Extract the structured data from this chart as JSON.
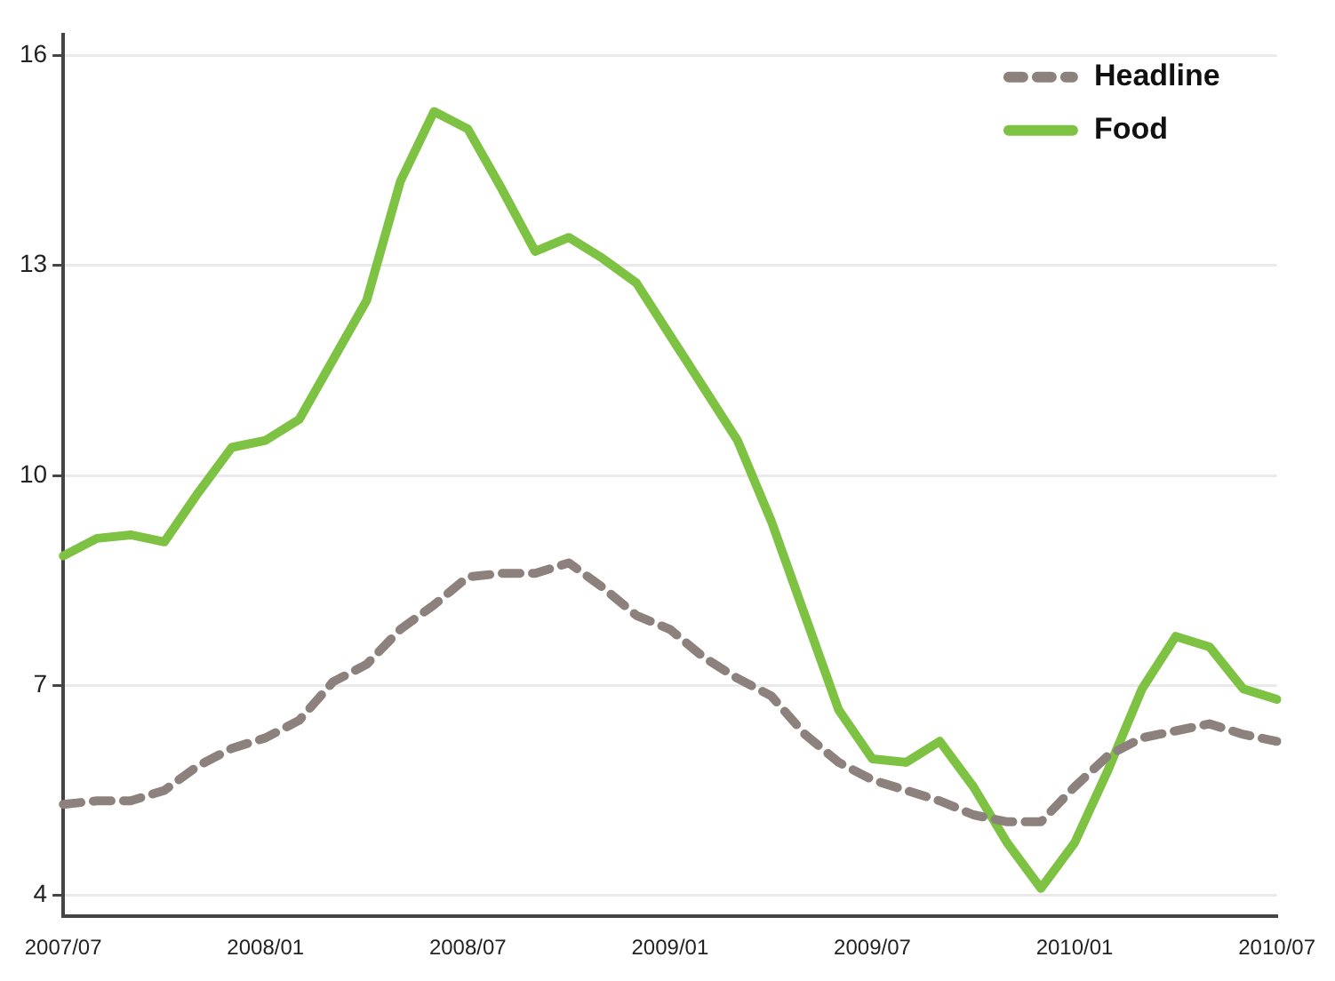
{
  "chart_data": {
    "type": "line",
    "categories": [
      "2007/07",
      null,
      null,
      null,
      null,
      null,
      "2008/01",
      null,
      null,
      null,
      null,
      null,
      "2008/07",
      null,
      null,
      null,
      null,
      null,
      "2009/01",
      null,
      null,
      null,
      null,
      null,
      "2009/07",
      null,
      null,
      null,
      null,
      null,
      "2010/01",
      null,
      null,
      null,
      null,
      null,
      "2010/07"
    ],
    "series": [
      {
        "name": "Headline",
        "color": "#8c817c",
        "line_style": "dashed",
        "values": [
          5.3,
          5.35,
          5.35,
          5.5,
          5.85,
          6.1,
          6.25,
          6.5,
          7.05,
          7.3,
          7.8,
          8.15,
          8.55,
          8.6,
          8.6,
          8.75,
          8.4,
          8.0,
          7.8,
          7.4,
          7.1,
          6.85,
          6.3,
          5.9,
          5.65,
          5.5,
          5.35,
          5.15,
          5.05,
          5.05,
          5.55,
          6.0,
          6.25,
          6.35,
          6.45,
          6.3,
          6.2
        ]
      },
      {
        "name": "Food",
        "color": "#7dc242",
        "line_style": "solid",
        "values": [
          8.85,
          9.1,
          9.15,
          9.05,
          9.75,
          10.4,
          10.5,
          10.8,
          11.65,
          12.5,
          14.2,
          15.2,
          14.95,
          14.1,
          13.2,
          13.4,
          13.1,
          12.75,
          12.0,
          11.25,
          10.5,
          9.35,
          8.0,
          6.65,
          5.95,
          5.9,
          6.2,
          5.55,
          4.75,
          4.1,
          4.75,
          5.8,
          6.95,
          7.7,
          7.55,
          6.95,
          6.8
        ]
      }
    ],
    "ylim": [
      3.7,
      16.3
    ],
    "yticks": [
      4,
      7,
      10,
      13,
      16
    ],
    "grid": "y",
    "legend": "top right",
    "marker": "none"
  }
}
